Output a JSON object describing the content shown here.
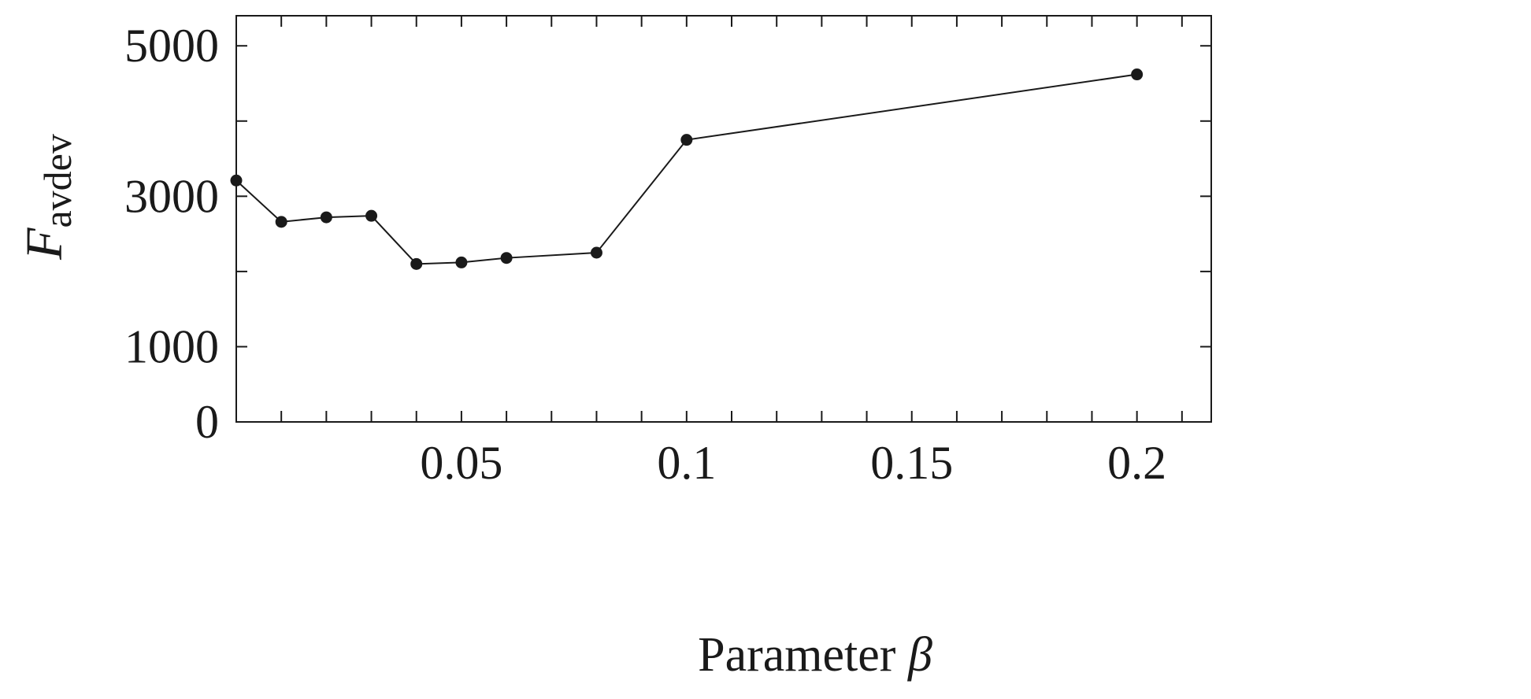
{
  "chart_data": {
    "type": "line",
    "xlabel_main": "Parameter ",
    "xlabel_symbol": "β",
    "ylabel_main": "F",
    "ylabel_sub": "avdev",
    "x_tick_values": [
      0.05,
      0.1,
      0.15,
      0.2
    ],
    "x_tick_labels": [
      "0.05",
      "0.1",
      "0.15",
      "0.2"
    ],
    "x_minor_ticks": [
      0.01,
      0.02,
      0.03,
      0.04,
      0.05,
      0.06,
      0.07,
      0.08,
      0.09,
      0.1,
      0.11,
      0.12,
      0.13,
      0.14,
      0.15,
      0.16,
      0.17,
      0.18,
      0.19,
      0.2,
      0.21
    ],
    "y_tick_values": [
      0,
      1000,
      3000,
      5000
    ],
    "y_tick_labels": [
      "0",
      "1000",
      "3000",
      "5000"
    ],
    "y_minor_ticks": [
      0,
      1000,
      2000,
      3000,
      4000,
      5000
    ],
    "xlim": [
      0,
      0.2165
    ],
    "ylim": [
      0,
      5400
    ],
    "grid": false,
    "series": [
      {
        "x": [
          0,
          0.01,
          0.02,
          0.03,
          0.04,
          0.05,
          0.06,
          0.08,
          0.1,
          0.2
        ],
        "y": [
          3210,
          2660,
          2720,
          2740,
          2100,
          2120,
          2180,
          2250,
          3750,
          4620
        ]
      }
    ]
  }
}
